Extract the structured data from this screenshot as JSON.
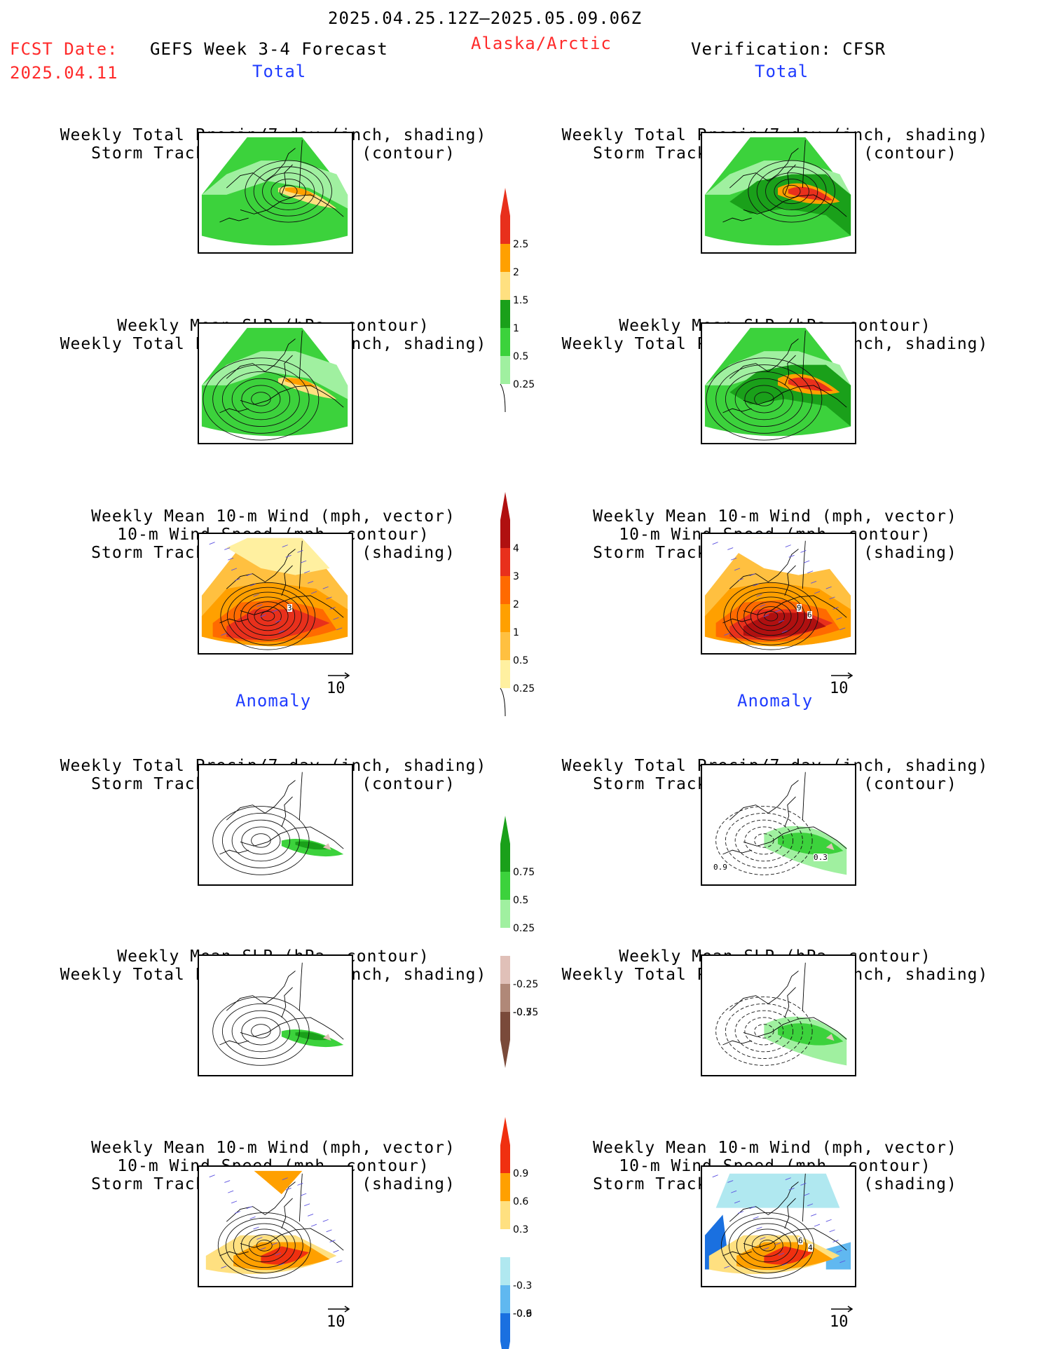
{
  "header": {
    "date_range": "2025.04.25.12Z–2025.05.09.06Z",
    "fcst_label": "FCST Date:",
    "fcst_date": "2025.04.11",
    "forecast_name": "GEFS Week 3-4 Forecast",
    "region": "Alaska/Arctic",
    "verification": "Verification: CFSR"
  },
  "sections": {
    "total": "Total",
    "anomaly": "Anomaly"
  },
  "panels": {
    "precip_storm": [
      "Weekly Total Precip/7-day (inch, shading)",
      "Storm Track Density/7-day (contour)"
    ],
    "slp_precip": [
      "Weekly Mean SLP (hPa, contour)",
      "Weekly Total Precip/7-day (inch, shading)"
    ],
    "wind_storm": [
      "Weekly Mean 10-m Wind (mph, vector)",
      "10-m Wind Speed (mph, contour)",
      "Storm Track Density/7-day (shading)"
    ]
  },
  "vector_ref": "10",
  "colorbars": {
    "precip_total": {
      "labels": [
        "2.5",
        "2",
        "1.5",
        "1",
        "0.5",
        "0.25"
      ],
      "colors": [
        "#e8301c",
        "#ffa000",
        "#ffe080",
        "#1aa01a",
        "#3cd23c",
        "#a0f0a0"
      ]
    },
    "storm_total": {
      "labels": [
        "4",
        "3",
        "2",
        "1",
        "0.5",
        "0.25"
      ],
      "colors": [
        "#b01010",
        "#e8301c",
        "#ff6a00",
        "#ffa000",
        "#ffc040",
        "#fff0a0"
      ]
    },
    "precip_anom": {
      "labels": [
        "0.75",
        "0.5",
        "0.25",
        "-0.25",
        "-0.5",
        "-0.75"
      ],
      "colors": [
        "#1aa01a",
        "#3cd23c",
        "#a0f0a0",
        "#e0c0b8",
        "#b08878",
        "#7a4a3a"
      ]
    },
    "storm_anom": {
      "labels": [
        "0.9",
        "0.6",
        "0.3",
        "-0.3",
        "-0.6",
        "-0.9"
      ],
      "colors": [
        "#f03010",
        "#ffa000",
        "#ffe080",
        "#b0e8f0",
        "#60b8f0",
        "#1a70e0"
      ]
    }
  },
  "map_labels": {
    "wind_total_left": "3",
    "wind_total_right_a": "9",
    "wind_total_right_b": "6",
    "precip_anom_right_a": "0.3",
    "precip_anom_right_b": "0.9",
    "wind_anom_right_a": "6",
    "wind_anom_right_b": "4"
  }
}
